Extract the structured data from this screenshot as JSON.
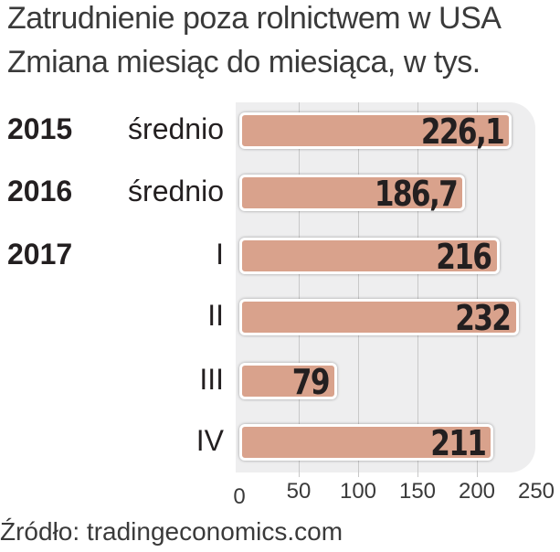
{
  "chart_data": {
    "type": "bar",
    "orientation": "horizontal",
    "title": "Zatrudnienie poza rolnictwem w USA",
    "subtitle": "Zmiana miesiąc do miesiąca, w tys.",
    "categories": [
      {
        "year": "2015",
        "label": "średnio"
      },
      {
        "year": "2016",
        "label": "średnio"
      },
      {
        "year": "2017",
        "label": "I"
      },
      {
        "year": "",
        "label": "II"
      },
      {
        "year": "",
        "label": "III"
      },
      {
        "year": "",
        "label": "IV"
      }
    ],
    "values": [
      226.1,
      186.7,
      216,
      232,
      79,
      211
    ],
    "value_labels": [
      "226,1",
      "186,7",
      "216",
      "232",
      "79",
      "211"
    ],
    "xlim": [
      0,
      250
    ],
    "xticks": [
      "0",
      "50",
      "100",
      "150",
      "200",
      "250"
    ],
    "grid": true,
    "bar_color": "#d9a28c",
    "source": "Źródło: tradingeconomics.com"
  }
}
